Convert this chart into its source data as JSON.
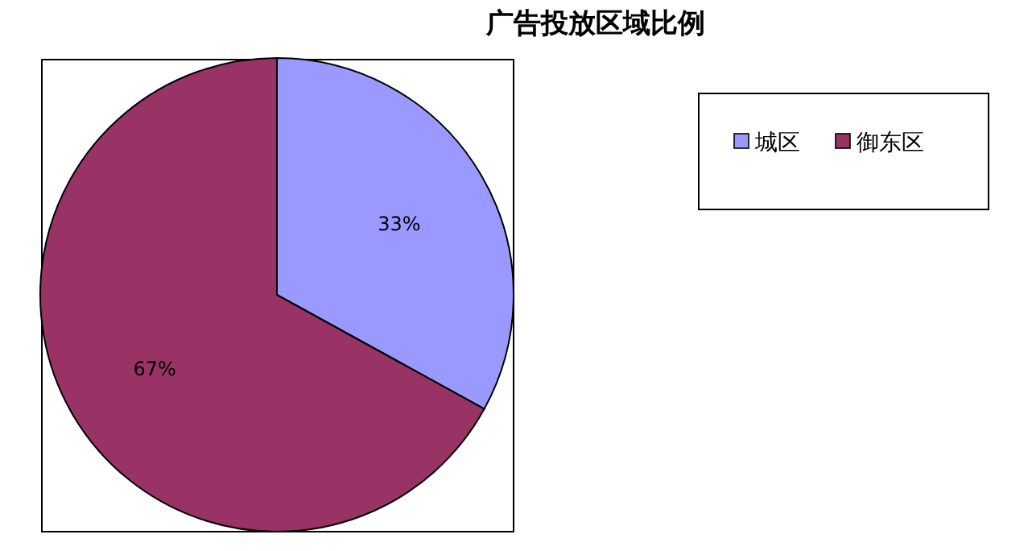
{
  "chart_data": {
    "type": "pie",
    "title": "广告投放区域比例",
    "categories": [
      "城区",
      "御东区"
    ],
    "values": [
      33,
      67
    ],
    "colors": [
      "#9999ff",
      "#993366"
    ],
    "legend": "top right",
    "value_labels": [
      "33%",
      "67%"
    ]
  }
}
